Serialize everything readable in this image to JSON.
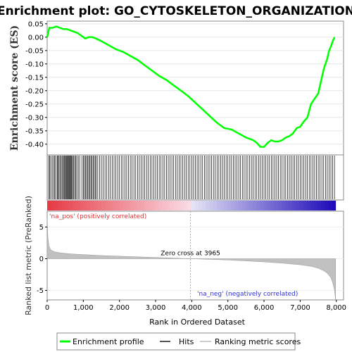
{
  "title": "Enrichment plot: GO_CYTOSKELETON_ORGANIZATION",
  "chart_data": {
    "type": "line",
    "title": "Enrichment plot: GO_CYTOSKELETON_ORGANIZATION",
    "es_panel": {
      "ylabel": "Enrichment score (ES)",
      "ylim": [
        -0.44,
        0.06
      ],
      "yticks": [
        "0.05",
        "0.00",
        "-0.05",
        "-0.10",
        "-0.15",
        "-0.20",
        "-0.25",
        "-0.30",
        "-0.35",
        "-0.40"
      ],
      "ytick_values": [
        0.05,
        0.0,
        -0.05,
        -0.1,
        -0.15,
        -0.2,
        -0.25,
        -0.3,
        -0.35,
        -0.4
      ],
      "series": [
        {
          "name": "Enrichment profile",
          "color": "#00ff00",
          "x": [
            0,
            60,
            150,
            250,
            350,
            450,
            550,
            650,
            750,
            850,
            950,
            1050,
            1150,
            1250,
            1350,
            1500,
            1700,
            1900,
            2100,
            2300,
            2500,
            2700,
            2900,
            3100,
            3300,
            3500,
            3700,
            3900,
            4100,
            4300,
            4500,
            4700,
            4900,
            5100,
            5300,
            5500,
            5700,
            5800,
            5900,
            6000,
            6100,
            6200,
            6300,
            6400,
            6500,
            6600,
            6700,
            6800,
            6900,
            7000,
            7100,
            7200,
            7300,
            7400,
            7500,
            7550,
            7600,
            7650,
            7700,
            7750,
            7800,
            7850,
            7900,
            7950
          ],
          "y": [
            0.0,
            0.035,
            0.035,
            0.04,
            0.035,
            0.03,
            0.03,
            0.025,
            0.02,
            0.015,
            0.005,
            -0.005,
            0.0,
            0.0,
            -0.005,
            -0.015,
            -0.03,
            -0.045,
            -0.055,
            -0.07,
            -0.085,
            -0.105,
            -0.125,
            -0.145,
            -0.16,
            -0.18,
            -0.2,
            -0.22,
            -0.245,
            -0.27,
            -0.295,
            -0.32,
            -0.34,
            -0.345,
            -0.36,
            -0.375,
            -0.385,
            -0.395,
            -0.41,
            -0.41,
            -0.395,
            -0.385,
            -0.39,
            -0.39,
            -0.385,
            -0.375,
            -0.37,
            -0.36,
            -0.34,
            -0.335,
            -0.315,
            -0.3,
            -0.25,
            -0.23,
            -0.21,
            -0.18,
            -0.15,
            -0.12,
            -0.1,
            -0.08,
            -0.05,
            -0.035,
            -0.015,
            0.0
          ]
        }
      ]
    },
    "hits_panel": {
      "name": "Hits",
      "positions": [
        40,
        70,
        100,
        140,
        180,
        210,
        240,
        280,
        300,
        330,
        360,
        390,
        420,
        450,
        470,
        490,
        520,
        540,
        560,
        580,
        600,
        620,
        640,
        660,
        680,
        700,
        730,
        760,
        790,
        820,
        860,
        900,
        960,
        1000,
        1030,
        1060,
        1090,
        1120,
        1150,
        1180,
        1210,
        1240,
        1270,
        1300,
        1330,
        1360,
        1400,
        1450,
        1500,
        1550,
        1600,
        1650,
        1700,
        1750,
        1800,
        1850,
        1900,
        1950,
        2000,
        2050,
        2100,
        2150,
        2200,
        2250,
        2300,
        2350,
        2400,
        2450,
        2500,
        2550,
        2600,
        2650,
        2700,
        2750,
        2800,
        2850,
        2900,
        2950,
        3000,
        3050,
        3100,
        3150,
        3200,
        3250,
        3300,
        3350,
        3400,
        3450,
        3500,
        3550,
        3600,
        3650,
        3700,
        3750,
        3800,
        3850,
        3900,
        3950,
        4000,
        4050,
        4100,
        4150,
        4200,
        4250,
        4300,
        4350,
        4400,
        4450,
        4500,
        4550,
        4600,
        4650,
        4700,
        4750,
        4800,
        4850,
        4900,
        4950,
        5000,
        5050,
        5100,
        5150,
        5200,
        5250,
        5300,
        5350,
        5400,
        5450,
        5500,
        5550,
        5600,
        5650,
        5700,
        5750,
        5800,
        5850,
        5900,
        5950,
        6000,
        6050,
        6100,
        6150,
        6200,
        6250,
        6300,
        6350,
        6400,
        6450,
        6500,
        6550,
        6600,
        6650,
        6700,
        6750,
        6800,
        6850,
        6900,
        6950,
        7000,
        7050,
        7100,
        7150,
        7200,
        7250,
        7300,
        7350,
        7400,
        7450,
        7500,
        7550,
        7600,
        7650,
        7700,
        7750,
        7800,
        7850,
        7900,
        7950
      ]
    },
    "rank_panel": {
      "ylabel": "Ranked list metric (PreRanked)",
      "xlabel": "Rank in Ordered Dataset",
      "ylim": [
        -6.5,
        7.5
      ],
      "yticks": [
        "5",
        "0",
        "-5"
      ],
      "ytick_values": [
        5,
        0,
        -5
      ],
      "xticks": [
        "0",
        "1,000",
        "2,000",
        "3,000",
        "4,000",
        "5,000",
        "6,000",
        "7,000",
        "8,000"
      ],
      "xtick_values": [
        0,
        1000,
        2000,
        3000,
        4000,
        5000,
        6000,
        7000,
        8000
      ],
      "xlim": [
        0,
        8200
      ],
      "series": [
        {
          "name": "Ranking metric scores",
          "x": [
            0,
            20,
            50,
            100,
            200,
            400,
            700,
            1000,
            1500,
            2000,
            2500,
            3000,
            3500,
            3965,
            4500,
            5000,
            5500,
            6000,
            6500,
            7000,
            7300,
            7500,
            7650,
            7750,
            7850,
            7900,
            7950,
            7980
          ],
          "y": [
            6.5,
            3.5,
            2.0,
            1.4,
            1.1,
            0.9,
            0.75,
            0.65,
            0.5,
            0.4,
            0.3,
            0.2,
            0.1,
            0.0,
            -0.1,
            -0.2,
            -0.35,
            -0.5,
            -0.7,
            -0.95,
            -1.2,
            -1.5,
            -1.9,
            -2.3,
            -3.0,
            -3.8,
            -5.0,
            -6.5
          ]
        }
      ],
      "zero_cross_label": "Zero cross at 3965",
      "zero_cross": 3965,
      "pos_label": "'na_pos' (positively correlated)",
      "neg_label": "'na_neg' (negatively correlated)"
    },
    "legend": {
      "placement": "bottom",
      "items": [
        {
          "name": "Enrichment profile",
          "color": "#00ff00"
        },
        {
          "name": "Hits",
          "color": "#555555"
        },
        {
          "name": "Ranking metric scores",
          "color": "#cccccc"
        }
      ]
    },
    "n_genes": 7980
  }
}
